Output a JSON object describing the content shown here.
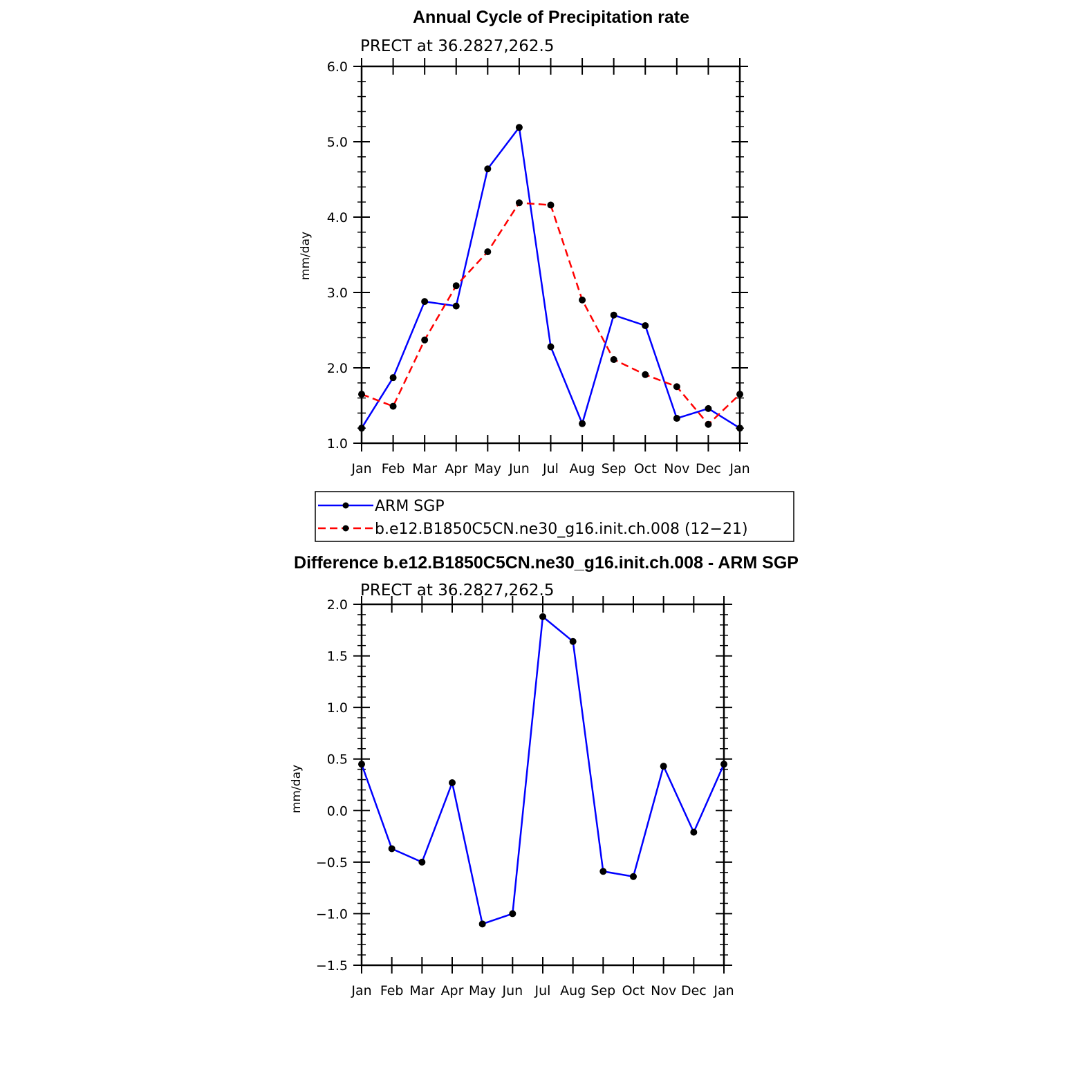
{
  "chart_data": [
    {
      "type": "line",
      "title": "Annual Cycle of Precipitation rate",
      "subtitle": "PRECT at 36.2827,262.5",
      "ylabel": "mm/day",
      "xlabel": "",
      "ylim": [
        1.0,
        6.0
      ],
      "yticks": [
        "1.0",
        "2.0",
        "3.0",
        "4.0",
        "5.0",
        "6.0"
      ],
      "categories": [
        "Jan",
        "Feb",
        "Mar",
        "Apr",
        "May",
        "Jun",
        "Jul",
        "Aug",
        "Sep",
        "Oct",
        "Nov",
        "Dec",
        "Jan"
      ],
      "grid": false,
      "legend_position": "below",
      "series": [
        {
          "name": "ARM SGP",
          "color": "#0000ff",
          "dash": "solid",
          "values": [
            1.2,
            1.87,
            2.88,
            2.82,
            4.64,
            5.19,
            2.28,
            1.26,
            2.7,
            2.56,
            1.33,
            1.46,
            1.2
          ]
        },
        {
          "name": "b.e12.B1850C5CN.ne30_g16.init.ch.008 (12−21)",
          "color": "#ff0000",
          "dash": "dashed",
          "values": [
            1.65,
            1.49,
            2.37,
            3.09,
            3.54,
            4.19,
            4.16,
            2.9,
            2.11,
            1.91,
            1.75,
            1.25,
            1.65
          ]
        }
      ]
    },
    {
      "type": "line",
      "title": "Difference b.e12.B1850C5CN.ne30_g16.init.ch.008 - ARM SGP",
      "subtitle": "PRECT at 36.2827,262.5",
      "ylabel": "mm/day",
      "xlabel": "",
      "ylim": [
        -1.5,
        2.0
      ],
      "yticks": [
        "−1.5",
        "−1.0",
        "−0.5",
        "0.0",
        "0.5",
        "1.0",
        "1.5",
        "2.0"
      ],
      "categories": [
        "Jan",
        "Feb",
        "Mar",
        "Apr",
        "May",
        "Jun",
        "Jul",
        "Aug",
        "Sep",
        "Oct",
        "Nov",
        "Dec",
        "Jan"
      ],
      "grid": false,
      "series": [
        {
          "color": "#0000ff",
          "dash": "solid",
          "values": [
            0.45,
            -0.37,
            -0.5,
            0.27,
            -1.1,
            -1.0,
            1.88,
            1.64,
            -0.59,
            -0.64,
            0.43,
            -0.21,
            0.45
          ]
        }
      ]
    }
  ]
}
